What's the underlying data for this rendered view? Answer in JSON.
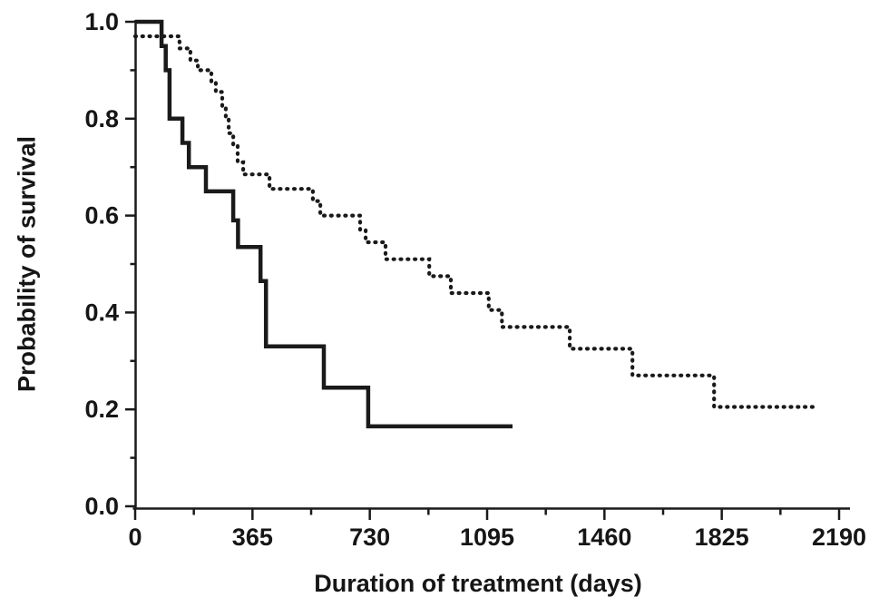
{
  "chart_data": {
    "type": "line",
    "subtype": "kaplan_meier_step",
    "title": "",
    "xlabel": "Duration of treatment (days)",
    "ylabel": "Probability of survival",
    "xlim": [
      0,
      2190
    ],
    "ylim": [
      0.0,
      1.0
    ],
    "grid": false,
    "legend": "none",
    "axis_color": "#1a1a1a",
    "x_ticks": [
      0,
      365,
      730,
      1095,
      1460,
      1825,
      2190
    ],
    "x_tick_labels": [
      "0",
      "365",
      "730",
      "1095",
      "1460",
      "1825",
      "2190"
    ],
    "x_minor_ticks": [
      182.5,
      547.5,
      912.5,
      1277.5,
      1642.5,
      2007.5
    ],
    "y_ticks": [
      0.0,
      0.2,
      0.4,
      0.6,
      0.8,
      1.0
    ],
    "y_tick_labels": [
      "0.0",
      "0.2",
      "0.4",
      "0.6",
      "0.8",
      "1.0"
    ],
    "y_minor_ticks": [
      0.1,
      0.3,
      0.5,
      0.7,
      0.9
    ],
    "series": [
      {
        "name": "solid_curve",
        "line_style": "solid",
        "color": "#1a1a1a",
        "steps": [
          [
            0,
            1.0
          ],
          [
            82,
            0.95
          ],
          [
            95,
            0.9
          ],
          [
            107,
            0.8
          ],
          [
            147,
            0.75
          ],
          [
            167,
            0.7
          ],
          [
            220,
            0.65
          ],
          [
            305,
            0.59
          ],
          [
            320,
            0.535
          ],
          [
            390,
            0.465
          ],
          [
            407,
            0.33
          ],
          [
            587,
            0.245
          ],
          [
            725,
            0.165
          ]
        ],
        "end_day": 1174
      },
      {
        "name": "dotted_curve",
        "line_style": "dotted",
        "color": "#1a1a1a",
        "steps": [
          [
            0,
            0.97
          ],
          [
            138,
            0.945
          ],
          [
            172,
            0.92
          ],
          [
            195,
            0.9
          ],
          [
            237,
            0.875
          ],
          [
            251,
            0.855
          ],
          [
            271,
            0.825
          ],
          [
            282,
            0.8
          ],
          [
            291,
            0.77
          ],
          [
            305,
            0.745
          ],
          [
            319,
            0.71
          ],
          [
            336,
            0.685
          ],
          [
            418,
            0.655
          ],
          [
            553,
            0.63
          ],
          [
            576,
            0.6
          ],
          [
            700,
            0.57
          ],
          [
            717,
            0.545
          ],
          [
            779,
            0.51
          ],
          [
            915,
            0.475
          ],
          [
            982,
            0.44
          ],
          [
            1100,
            0.405
          ],
          [
            1141,
            0.37
          ],
          [
            1352,
            0.325
          ],
          [
            1547,
            0.27
          ],
          [
            1801,
            0.205
          ]
        ],
        "end_day": 2114
      }
    ]
  }
}
